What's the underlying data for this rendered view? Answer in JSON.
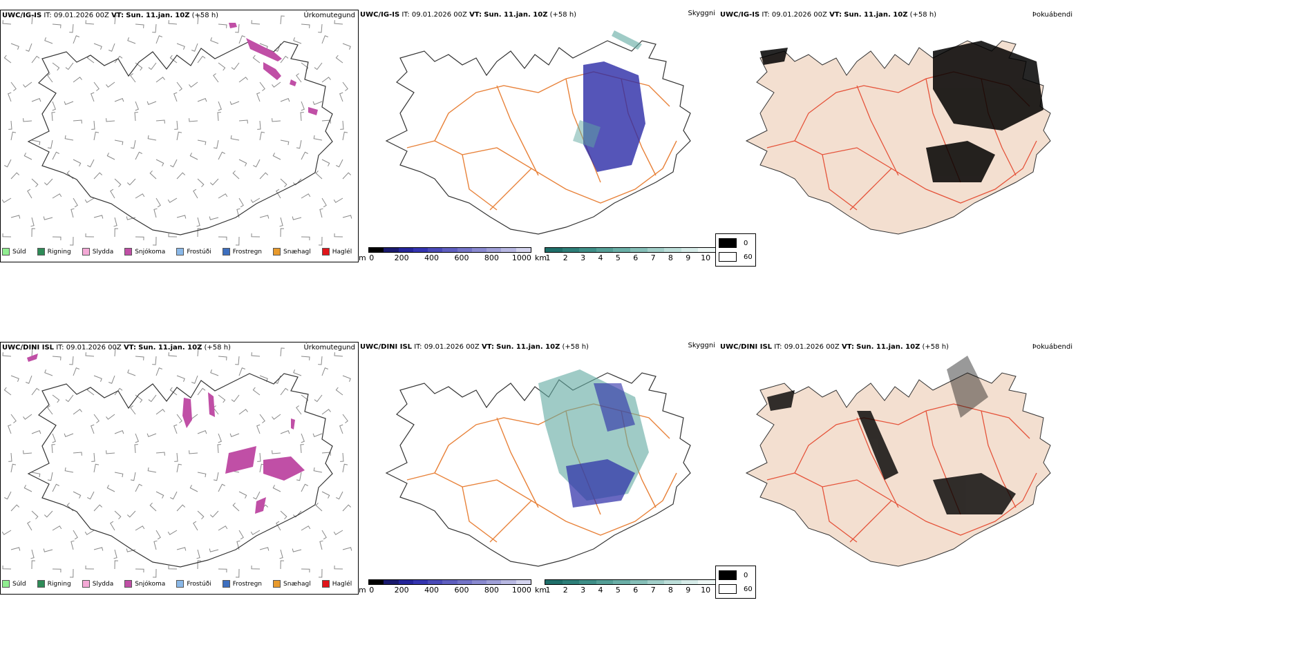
{
  "rows": [
    {
      "model": "UWC/IG-IS",
      "it_label": "IT:",
      "it_value": "09.01.2026 00Z",
      "vt_label": "VT:",
      "vt_value": "Sun. 11.jan. 10Z",
      "lead": "(+58 h)"
    },
    {
      "model": "UWC/DINI ISL",
      "it_label": "IT:",
      "it_value": "09.01.2026 00Z",
      "vt_label": "VT:",
      "vt_value": "Sun. 11.jan. 10Z",
      "lead": "(+58 h)"
    }
  ],
  "panel_titles": {
    "precip_type": "Úrkomutegund",
    "visibility": "Skyggni",
    "fog": "Þokuábendi"
  },
  "precip_legend": [
    {
      "label": "Súld",
      "color": "#90ee90"
    },
    {
      "label": "Rigning",
      "color": "#2e8b57"
    },
    {
      "label": "Slydda",
      "color": "#f4a9d6"
    },
    {
      "label": "Snjókoma",
      "color": "#c04fa6"
    },
    {
      "label": "Frostúði",
      "color": "#8ab8e8"
    },
    {
      "label": "Frostregn",
      "color": "#3d6fbf"
    },
    {
      "label": "Snæhagl",
      "color": "#e89a2c"
    },
    {
      "label": "Haglél",
      "color": "#e0141a"
    }
  ],
  "vis_m_scale": {
    "unit": "m",
    "ticks": [
      "0",
      "200",
      "400",
      "600",
      "800",
      "1000"
    ],
    "colors": [
      "#000000",
      "#1a1a6e",
      "#25259a",
      "#3434b0",
      "#4a4ab8",
      "#5f5fc0",
      "#7474c8",
      "#8a8ad0",
      "#a0a0d8",
      "#b8b8e2",
      "#d4d4ee"
    ]
  },
  "vis_km_scale": {
    "unit": "km",
    "ticks": [
      "1",
      "2",
      "3",
      "4",
      "5",
      "6",
      "7",
      "8",
      "9",
      "10"
    ],
    "colors": [
      "#1f6f6a",
      "#2e7f79",
      "#3f8f88",
      "#559f97",
      "#6bafa7",
      "#86bfb8",
      "#a2cfc9",
      "#bddfda",
      "#d7ece9",
      "#eef7f5"
    ]
  },
  "fog_legend": [
    {
      "label": "0",
      "color": "#000000"
    },
    {
      "label": "60",
      "color": "#ffffff"
    }
  ],
  "map_colors": {
    "roads": "#e8823a",
    "fog_land": "#f3dfd0",
    "fog_roads": "#e5533a",
    "fog_rivers": "#8a9fe8",
    "snow": "#c04fa6",
    "vis_blue": "#2a2aa6",
    "vis_teal": "#5fa8a0"
  }
}
